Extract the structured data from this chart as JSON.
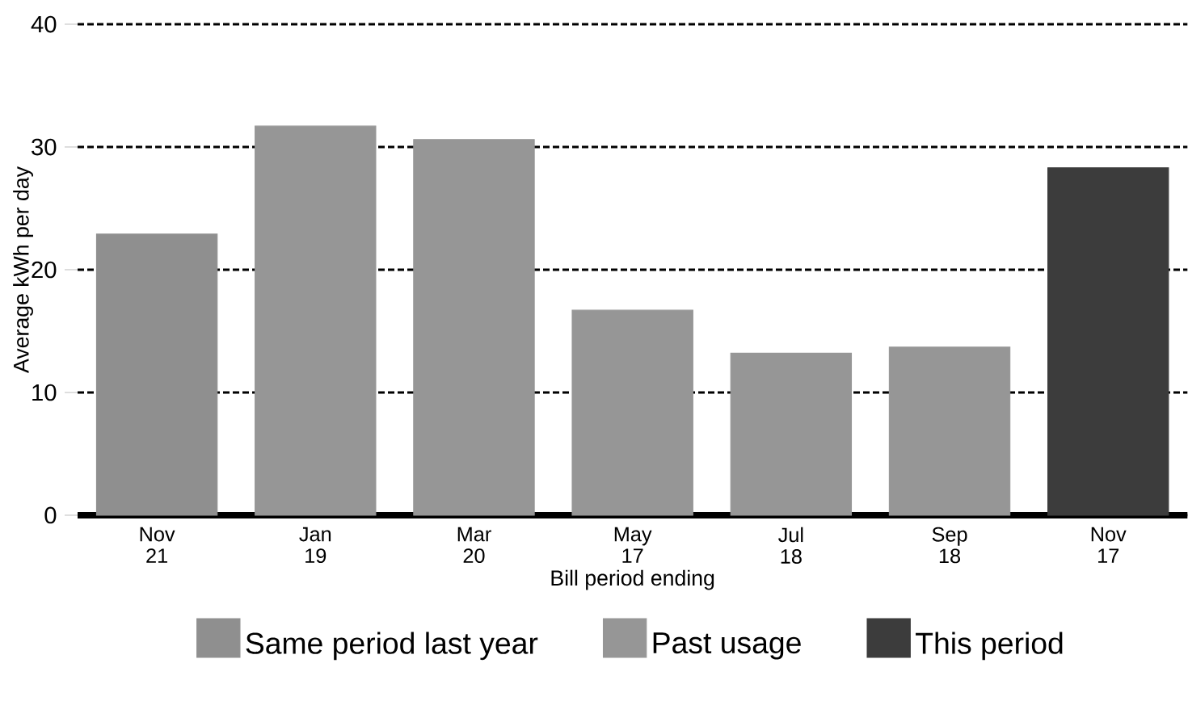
{
  "chart_data": {
    "type": "bar",
    "xlabel": "Bill period ending",
    "ylabel": "Average kWh per day",
    "categories": [
      "Nov 21",
      "Jan 19",
      "Mar 20",
      "May 17",
      "Jul 18",
      "Sep 18",
      "Nov 17"
    ],
    "series": [
      {
        "name": "Same period last year",
        "color": "#8f8f8f",
        "values": [
          22.9,
          null,
          null,
          null,
          null,
          null,
          null
        ]
      },
      {
        "name": "Past usage",
        "color": "#969696",
        "values": [
          null,
          31.7,
          30.6,
          16.7,
          13.2,
          13.7,
          null
        ]
      },
      {
        "name": "This period",
        "color": "#3c3c3c",
        "values": [
          null,
          null,
          null,
          null,
          null,
          null,
          28.3
        ]
      }
    ],
    "ylim": [
      0,
      40
    ],
    "yticks": [
      0,
      10,
      20,
      30,
      40
    ],
    "grid": "y",
    "legend": "bottom"
  }
}
